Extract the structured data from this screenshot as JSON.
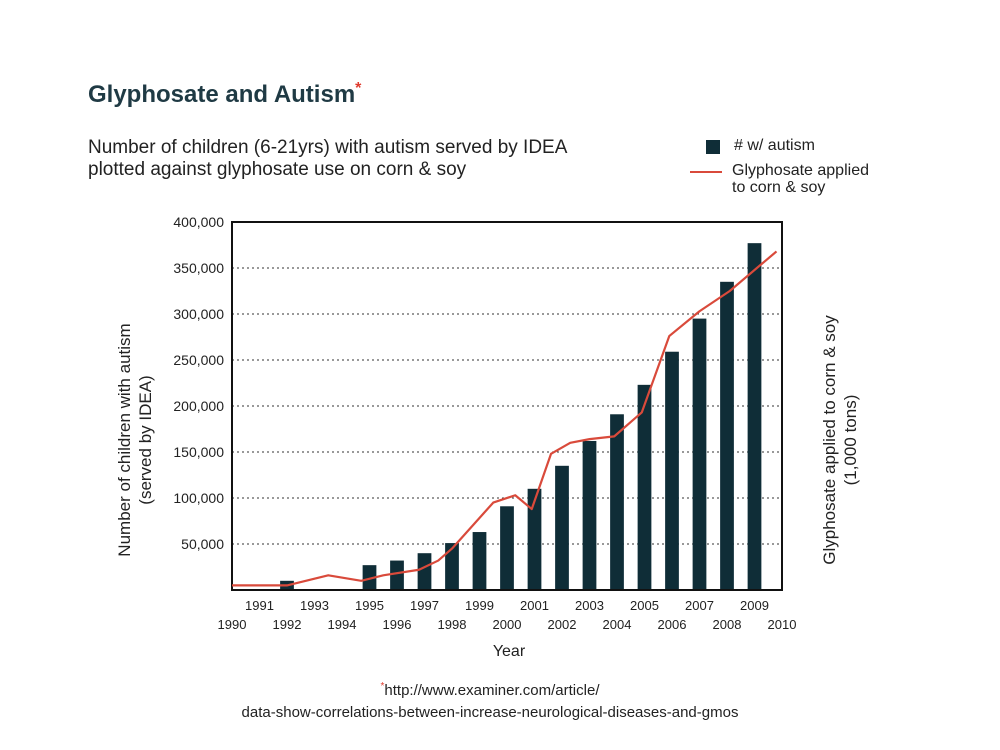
{
  "title": "Glyphosate and Autism",
  "title_mark": "*",
  "subtitle_line1": "Number of children (6-21yrs) with autism served by IDEA",
  "subtitle_line2": "plotted against glyphosate use on corn & soy",
  "legend": {
    "bar_label": "# w/ autism",
    "line_label_1": "Glyphosate applied",
    "line_label_2": "to corn & soy",
    "placement": "top-right"
  },
  "source": {
    "mark": "*",
    "line1": "http://www.examiner.com/article/",
    "line2": "data-show-correlations-between-increase-neurological-diseases-and-gmos"
  },
  "colors": {
    "bar": "#0f2d37",
    "line": "#d94a3b",
    "title": "#1f3a44",
    "accent": "#e03b2e"
  },
  "chart_data": {
    "type": "bar",
    "xlabel": "Year",
    "ylabel_line1": "Number of children with autism",
    "ylabel_line2": "(served by IDEA)",
    "y2label_line1": "Glyphosate applied to corn & soy",
    "y2label_line2": "(1,000 tons)",
    "xlim": [
      1990,
      2010
    ],
    "ylim": [
      0,
      400000
    ],
    "yticks": [
      50000,
      100000,
      150000,
      200000,
      250000,
      300000,
      350000,
      400000
    ],
    "ytick_labels": [
      "50,000",
      "100,000",
      "150,000",
      "200,000",
      "250,000",
      "300,000",
      "350,000",
      "400,000"
    ],
    "xticks_upper": [
      "1991",
      "1993",
      "1995",
      "1997",
      "1999",
      "2001",
      "2003",
      "2005",
      "2007",
      "2009"
    ],
    "xticks_lower": [
      "1990",
      "1992",
      "1994",
      "1996",
      "1998",
      "2000",
      "2002",
      "2004",
      "2006",
      "2008",
      "2010"
    ],
    "grid": "horizontal dotted",
    "series": [
      {
        "name": "# w/ autism",
        "type": "bar",
        "x": [
          1992,
          1995,
          1996,
          1997,
          1998,
          1999,
          2000,
          2001,
          2002,
          2003,
          2004,
          2005,
          2006,
          2007,
          2008,
          2009
        ],
        "values": [
          10000,
          27000,
          32000,
          40000,
          51000,
          63000,
          91000,
          110000,
          135000,
          162000,
          191000,
          223000,
          259000,
          295000,
          335000,
          377000
        ]
      },
      {
        "name": "Glyphosate applied to corn & soy",
        "type": "line",
        "x": [
          1990,
          1992,
          1993.5,
          1994.7,
          1995.5,
          1996.8,
          1997.5,
          1998,
          1999.5,
          2000.3,
          2000.9,
          2001.6,
          2002.3,
          2003,
          2003.9,
          2004.9,
          2005.9,
          2007,
          2008.1,
          2009.8
        ],
        "values": [
          5000,
          5000,
          16000,
          10000,
          16000,
          22000,
          32000,
          45000,
          95000,
          103000,
          88000,
          148000,
          160000,
          164000,
          167000,
          193000,
          276000,
          303000,
          325000,
          368000
        ]
      }
    ]
  }
}
